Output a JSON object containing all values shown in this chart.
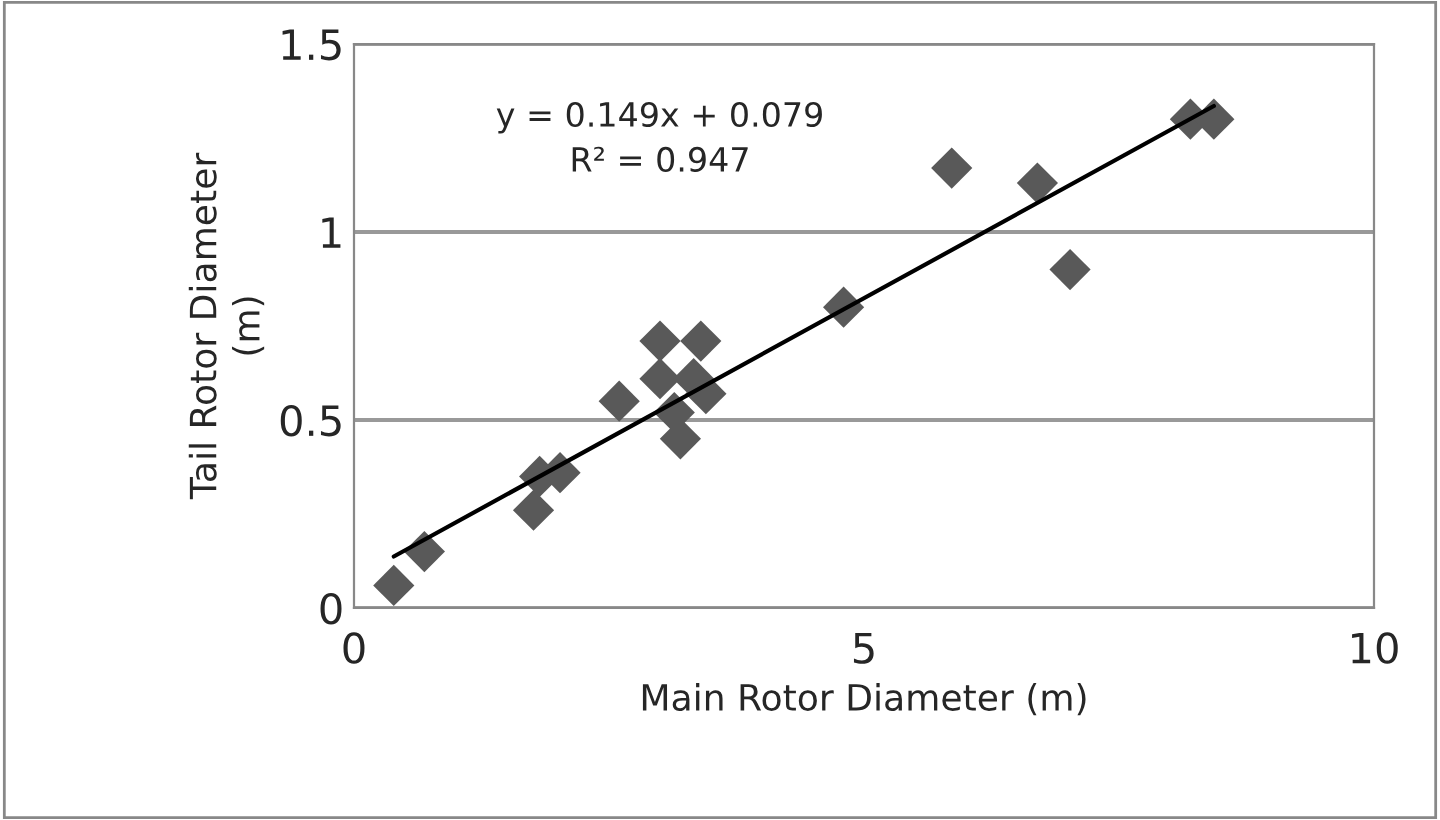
{
  "chart_data": {
    "type": "scatter",
    "xlabel": "Main Rotor Diameter (m)",
    "ylabel": "Tail Rotor Diameter\n(m)",
    "xlim": [
      0,
      10
    ],
    "xticks": [
      0,
      5,
      10
    ],
    "ylim": [
      0,
      1.5
    ],
    "yticks": [
      0,
      0.5,
      1,
      1.5
    ],
    "grid": "y",
    "legend": false,
    "annotations": [
      "y = 0.149x + 0.079\nR² = 0.947"
    ],
    "series": [
      {
        "marker": "diamond",
        "color": "#595959",
        "x": [
          0.39,
          0.69,
          1.76,
          1.82,
          2.02,
          2.6,
          3.0,
          3.4,
          3.0,
          3.33,
          3.45,
          3.14,
          3.2,
          4.8,
          5.86,
          6.7,
          7.02,
          8.2,
          8.43
        ],
        "values": [
          0.06,
          0.15,
          0.26,
          0.35,
          0.36,
          0.55,
          0.71,
          0.71,
          0.61,
          0.61,
          0.57,
          0.52,
          0.45,
          0.8,
          1.17,
          1.13,
          0.9,
          1.3,
          1.3
        ]
      },
      {
        "type": "line",
        "marker": "none",
        "color": "#000000",
        "x": [
          0.39,
          8.43
        ],
        "values": [
          0.137,
          1.335
        ]
      }
    ]
  }
}
